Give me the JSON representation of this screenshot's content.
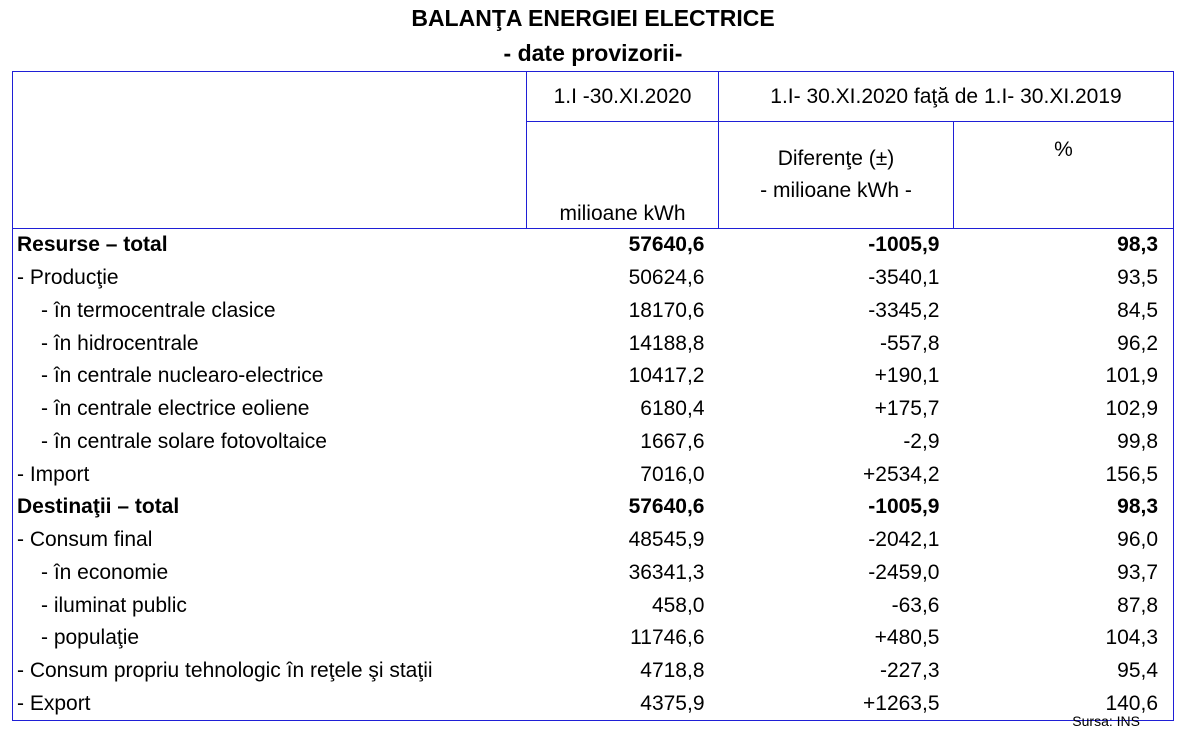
{
  "title": "BALANŢA ENERGIEI ELECTRICE",
  "subtitle": "- date provizorii-",
  "header": {
    "period_current": "1.I -30.XI.2020",
    "period_compare": "1.I- 30.XI.2020 faţă de 1.I- 30.XI.2019",
    "unit_current": "milioane kWh",
    "diff_label": "Diferenţe (±)",
    "diff_unit": "- milioane kWh -",
    "percent_label": "%"
  },
  "rows": [
    {
      "label": "Resurse – total",
      "value": "57640,6",
      "diff": "-1005,9",
      "pct": "98,3",
      "bold": true,
      "indent": false
    },
    {
      "label": "- Producţie",
      "value": "50624,6",
      "diff": "-3540,1",
      "pct": "93,5",
      "bold": false,
      "indent": false
    },
    {
      "label": "- în termocentrale clasice",
      "value": "18170,6",
      "diff": "-3345,2",
      "pct": "84,5",
      "bold": false,
      "indent": true
    },
    {
      "label": "- în hidrocentrale",
      "value": "14188,8",
      "diff": "-557,8",
      "pct": "96,2",
      "bold": false,
      "indent": true
    },
    {
      "label": "- în centrale nuclearo-electrice",
      "value": "10417,2",
      "diff": "+190,1",
      "pct": "101,9",
      "bold": false,
      "indent": true
    },
    {
      "label": "- în centrale electrice eoliene",
      "value": "6180,4",
      "diff": "+175,7",
      "pct": "102,9",
      "bold": false,
      "indent": true
    },
    {
      "label": "- în centrale solare fotovoltaice",
      "value": "1667,6",
      "diff": "-2,9",
      "pct": "99,8",
      "bold": false,
      "indent": true
    },
    {
      "label": "- Import",
      "value": "7016,0",
      "diff": "+2534,2",
      "pct": "156,5",
      "bold": false,
      "indent": false
    },
    {
      "label": "Destinaţii – total",
      "value": "57640,6",
      "diff": "-1005,9",
      "pct": "98,3",
      "bold": true,
      "indent": false
    },
    {
      "label": "- Consum final",
      "value": "48545,9",
      "diff": "-2042,1",
      "pct": "96,0",
      "bold": false,
      "indent": false
    },
    {
      "label": "- în economie",
      "value": "36341,3",
      "diff": "-2459,0",
      "pct": "93,7",
      "bold": false,
      "indent": true
    },
    {
      "label": "- iluminat public",
      "value": "458,0",
      "diff": "-63,6",
      "pct": "87,8",
      "bold": false,
      "indent": true
    },
    {
      "label": "- populaţie",
      "value": "11746,6",
      "diff": "+480,5",
      "pct": "104,3",
      "bold": false,
      "indent": true
    },
    {
      "label": "- Consum propriu tehnologic în reţele şi staţii",
      "value": "4718,8",
      "diff": "-227,3",
      "pct": "95,4",
      "bold": false,
      "indent": false
    },
    {
      "label": "- Export",
      "value": "4375,9",
      "diff": "+1263,5",
      "pct": "140,6",
      "bold": false,
      "indent": false
    }
  ],
  "source": "Sursa: INS",
  "colors": {
    "border": "#1f1fd6",
    "text": "#000000",
    "background": "#ffffff"
  }
}
